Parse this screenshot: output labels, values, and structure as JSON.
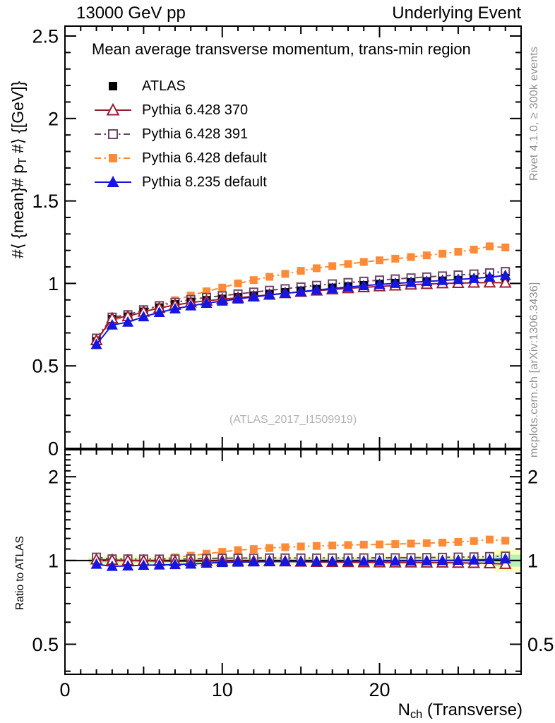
{
  "header": {
    "left": "13000 GeV pp",
    "right": "Underlying Event"
  },
  "main": {
    "title": "Mean average transverse momentum, trans-min region",
    "watermark": "(ATLAS_2017_I1509919)",
    "ylabel": {
      "pre": "#⟨ {mean}# p",
      "sub": "T",
      "post": " #⟩ {[GeV]}"
    }
  },
  "ratio_panel": {
    "ylabel": "Ratio to ATLAS"
  },
  "xaxis": {
    "label_pre": "N",
    "label_sub": "ch",
    "label_post": " (Transverse)"
  },
  "side_text": {
    "top": "Rivet 4.1.0, ≥ 300k events",
    "bottom": "mcplots.cern.ch [arXiv:1306.3436]"
  },
  "colors": {
    "axis": "#000000",
    "atlas": "#000000",
    "pythia6_370": "#9b1b30",
    "pythia6_391": "#6b4766",
    "pythia6_default": "#ff8b38",
    "pythia8_default": "#1616e0",
    "band_outer": "#ffffb8",
    "band_inner": "#b7f3b7",
    "gray_text": "#909090",
    "watermark": "#b3b3b3"
  },
  "chart_data": {
    "type": "line",
    "title": "Mean average transverse momentum, trans-min region",
    "xlabel": "N_ch (Transverse)",
    "ylabel": "<mean pT> [GeV]",
    "ratio_ylabel": "Ratio to ATLAS",
    "x": [
      2,
      3,
      4,
      5,
      6,
      7,
      8,
      9,
      10,
      11,
      12,
      13,
      14,
      15,
      16,
      17,
      18,
      19,
      20,
      21,
      22,
      23,
      24,
      25,
      26,
      27,
      28
    ],
    "xlim": [
      0,
      29
    ],
    "ylim_main": [
      0,
      2.56
    ],
    "ylim_ratio": [
      0.39,
      2.5
    ],
    "ratio_scale": "log",
    "x_major_ticks": [
      0,
      10,
      20
    ],
    "x_mid_ticks": [
      5,
      15,
      25
    ],
    "x_tick_labels": [
      "0",
      "10",
      "20"
    ],
    "y_ticks_main": [
      0,
      0.5,
      1,
      1.5,
      2,
      2.5
    ],
    "y_tick_labels_main": [
      "0",
      "0.5",
      "1",
      "1.5",
      "2",
      "2.5"
    ],
    "y_ticks_ratio": [
      0.5,
      1,
      2
    ],
    "y_tick_labels_ratio": [
      "0.5",
      "1",
      "2"
    ],
    "grid": false,
    "legend_position": "top-left",
    "series": [
      {
        "name": "ATLAS",
        "color": "#000000",
        "marker": "square-filled",
        "line": "none",
        "z": 2,
        "is_reference": true,
        "values": [
          0.65,
          0.785,
          0.8,
          0.83,
          0.855,
          0.875,
          0.89,
          0.9,
          0.908,
          0.918,
          0.928,
          0.938,
          0.948,
          0.958,
          0.968,
          0.976,
          0.984,
          0.991,
          0.998,
          1.004,
          1.009,
          1.014,
          1.018,
          1.022,
          1.026,
          1.03,
          1.034
        ]
      },
      {
        "name": "Pythia 6.428 370",
        "color": "#9b1b30",
        "marker": "triangle-open",
        "line": "solid",
        "z": 3,
        "values": [
          0.655,
          0.788,
          0.8,
          0.828,
          0.851,
          0.869,
          0.884,
          0.895,
          0.904,
          0.913,
          0.922,
          0.931,
          0.94,
          0.948,
          0.956,
          0.963,
          0.97,
          0.976,
          0.982,
          0.987,
          0.992,
          0.996,
          1.0,
          1.002,
          1.004,
          1.005,
          1.004
        ]
      },
      {
        "name": "Pythia 6.428 391",
        "color": "#6b4766",
        "marker": "square-open",
        "line": "dashdot",
        "z": 1,
        "values": [
          0.668,
          0.795,
          0.81,
          0.84,
          0.865,
          0.885,
          0.902,
          0.915,
          0.925,
          0.936,
          0.947,
          0.958,
          0.968,
          0.978,
          0.988,
          0.997,
          1.005,
          1.013,
          1.02,
          1.027,
          1.033,
          1.039,
          1.045,
          1.051,
          1.057,
          1.064,
          1.072
        ]
      },
      {
        "name": "Pythia 6.428 default",
        "color": "#ff8b38",
        "marker": "square-filled",
        "line": "dashdot",
        "z": 0,
        "values": [
          0.65,
          0.778,
          0.798,
          0.832,
          0.865,
          0.898,
          0.926,
          0.952,
          0.975,
          1.0,
          1.02,
          1.04,
          1.058,
          1.076,
          1.092,
          1.105,
          1.118,
          1.13,
          1.14,
          1.15,
          1.16,
          1.17,
          1.18,
          1.192,
          1.205,
          1.225,
          1.218
        ]
      },
      {
        "name": "Pythia 8.235 default",
        "color": "#1616e0",
        "marker": "triangle-filled",
        "line": "solid",
        "z": 4,
        "values": [
          0.63,
          0.748,
          0.765,
          0.798,
          0.824,
          0.846,
          0.864,
          0.88,
          0.893,
          0.906,
          0.918,
          0.929,
          0.94,
          0.95,
          0.96,
          0.969,
          0.978,
          0.986,
          0.994,
          1.0,
          1.006,
          1.012,
          1.018,
          1.024,
          1.03,
          1.038,
          1.048
        ]
      }
    ],
    "atlas_error": 0.01,
    "uncertainty_band": {
      "outer_color": "#ffffb8",
      "inner_color": "#b7f3b7",
      "outer_frac": 0.035,
      "inner_frac": 0.018,
      "x_from": 1.5,
      "x_to": 29,
      "last_bin": {
        "x_from": 27.3,
        "x_to": 29,
        "outer_frac": 0.09,
        "inner_frac": 0.05
      }
    }
  }
}
